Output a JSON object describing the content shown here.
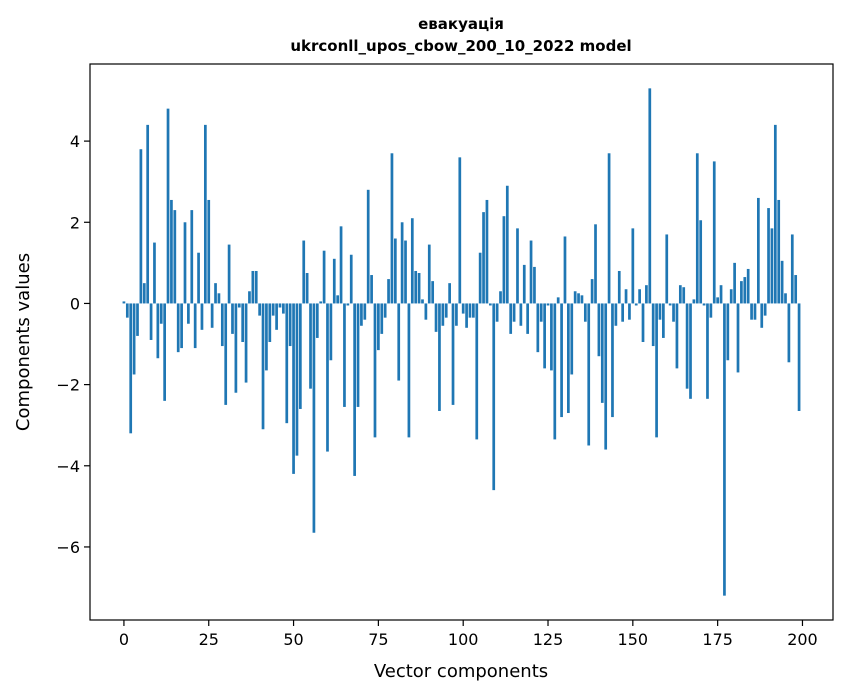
{
  "chart_data": {
    "type": "bar",
    "title": "евакуація",
    "subtitle": "ukrconll_upos_cbow_200_10_2022 model",
    "xlabel": "Vector components",
    "ylabel": "Components values",
    "xlim": [
      -10,
      209
    ],
    "ylim": [
      -7.8,
      5.9
    ],
    "xticks": [
      0,
      25,
      50,
      75,
      100,
      125,
      150,
      175,
      200
    ],
    "yticks": [
      -6,
      -4,
      -2,
      0,
      2,
      4
    ],
    "color": "#1f77b4",
    "grid": false,
    "legend": "none",
    "x": [
      0,
      1,
      2,
      3,
      4,
      5,
      6,
      7,
      8,
      9,
      10,
      11,
      12,
      13,
      14,
      15,
      16,
      17,
      18,
      19,
      20,
      21,
      22,
      23,
      24,
      25,
      26,
      27,
      28,
      29,
      30,
      31,
      32,
      33,
      34,
      35,
      36,
      37,
      38,
      39,
      40,
      41,
      42,
      43,
      44,
      45,
      46,
      47,
      48,
      49,
      50,
      51,
      52,
      53,
      54,
      55,
      56,
      57,
      58,
      59,
      60,
      61,
      62,
      63,
      64,
      65,
      66,
      67,
      68,
      69,
      70,
      71,
      72,
      73,
      74,
      75,
      76,
      77,
      78,
      79,
      80,
      81,
      82,
      83,
      84,
      85,
      86,
      87,
      88,
      89,
      90,
      91,
      92,
      93,
      94,
      95,
      96,
      97,
      98,
      99,
      100,
      101,
      102,
      103,
      104,
      105,
      106,
      107,
      108,
      109,
      110,
      111,
      112,
      113,
      114,
      115,
      116,
      117,
      118,
      119,
      120,
      121,
      122,
      123,
      124,
      125,
      126,
      127,
      128,
      129,
      130,
      131,
      132,
      133,
      134,
      135,
      136,
      137,
      138,
      139,
      140,
      141,
      142,
      143,
      144,
      145,
      146,
      147,
      148,
      149,
      150,
      151,
      152,
      153,
      154,
      155,
      156,
      157,
      158,
      159,
      160,
      161,
      162,
      163,
      164,
      165,
      166,
      167,
      168,
      169,
      170,
      171,
      172,
      173,
      174,
      175,
      176,
      177,
      178,
      179,
      180,
      181,
      182,
      183,
      184,
      185,
      186,
      187,
      188,
      189,
      190,
      191,
      192,
      193,
      194,
      195,
      196,
      197,
      198,
      199
    ],
    "values": [
      0.05,
      -0.35,
      -3.2,
      -1.75,
      -0.8,
      3.8,
      0.5,
      4.4,
      -0.9,
      1.5,
      -1.35,
      -0.5,
      -2.4,
      4.8,
      2.55,
      2.3,
      -1.2,
      -1.1,
      2.0,
      -0.5,
      2.3,
      -1.1,
      1.25,
      -0.65,
      4.4,
      2.55,
      -0.6,
      0.5,
      0.25,
      -1.05,
      -2.5,
      1.45,
      -0.75,
      -2.2,
      -0.1,
      -0.95,
      -1.95,
      0.3,
      0.8,
      0.8,
      -0.3,
      -3.1,
      -1.65,
      -0.95,
      -0.3,
      -0.65,
      -0.1,
      -0.25,
      -2.95,
      -1.05,
      -4.2,
      -3.75,
      -2.6,
      1.55,
      0.75,
      -2.1,
      -5.65,
      -0.85,
      0.05,
      1.3,
      -3.65,
      -1.4,
      1.1,
      0.2,
      1.9,
      -2.55,
      -0.05,
      1.2,
      -4.25,
      -2.55,
      -0.55,
      -0.4,
      2.8,
      0.7,
      -3.3,
      -1.15,
      -0.75,
      -0.35,
      0.6,
      3.7,
      1.6,
      -1.9,
      2.0,
      1.55,
      -3.3,
      2.1,
      0.8,
      0.75,
      0.1,
      -0.4,
      1.45,
      0.55,
      -0.7,
      -2.65,
      -0.55,
      -0.35,
      0.5,
      -2.5,
      -0.55,
      3.6,
      -0.25,
      -0.6,
      -0.35,
      -0.35,
      -3.35,
      1.25,
      2.25,
      2.55,
      -0.05,
      -4.6,
      -0.45,
      0.3,
      2.15,
      2.9,
      -0.75,
      -0.45,
      1.85,
      -0.55,
      0.95,
      -0.75,
      1.55,
      0.9,
      -1.2,
      -0.45,
      -1.6,
      -0.05,
      -1.65,
      -3.35,
      0.15,
      -2.8,
      1.65,
      -2.7,
      -1.75,
      0.3,
      0.25,
      0.2,
      -0.45,
      -3.5,
      0.6,
      1.95,
      -1.3,
      -2.45,
      -3.6,
      3.7,
      -2.8,
      -0.55,
      0.8,
      -0.45,
      0.35,
      -0.4,
      1.85,
      -0.05,
      0.35,
      -0.95,
      0.45,
      5.3,
      -1.05,
      -3.3,
      -0.4,
      -0.85,
      1.7,
      -0.05,
      -0.45,
      -1.6,
      0.45,
      0.4,
      -2.1,
      -2.35,
      0.1,
      3.7,
      2.05,
      -0.05,
      -2.35,
      -0.35,
      3.5,
      0.15,
      0.45,
      -7.2,
      -1.4,
      0.35,
      1.0,
      -1.7,
      0.55,
      0.65,
      0.85,
      -0.4,
      -0.4,
      2.6,
      -0.6,
      -0.3,
      2.35,
      1.85,
      4.4,
      2.55,
      1.05,
      0.25,
      -1.45,
      1.7,
      0.7,
      -2.65
    ]
  }
}
